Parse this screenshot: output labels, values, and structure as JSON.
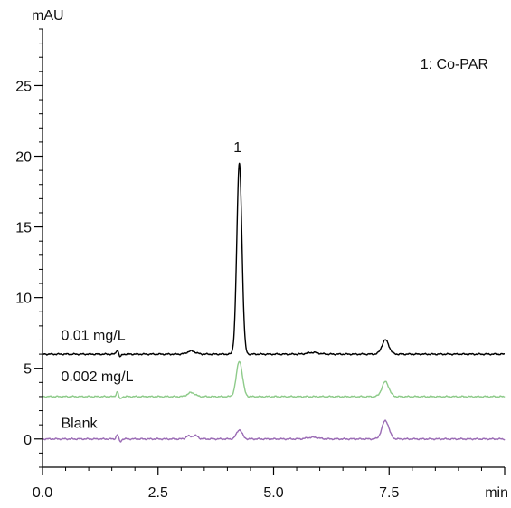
{
  "chart_data": {
    "type": "line",
    "y_unit_label": "mAU",
    "x_unit_label": "min",
    "xlim": [
      0,
      10
    ],
    "ylim": [
      -2,
      29
    ],
    "x_major_ticks": [
      0,
      2.5,
      5,
      7.5,
      10
    ],
    "x_tick_labels": [
      "0.0",
      "2.5",
      "5.0",
      "7.5",
      "min"
    ],
    "x_minor_step": 0.5,
    "y_major_ticks": [
      0,
      5,
      10,
      15,
      20,
      25
    ],
    "y_tick_labels": [
      "0",
      "5",
      "10",
      "15",
      "20",
      "25"
    ],
    "y_minor_step": 1,
    "grid": false,
    "legend_text": "1: Co-PAR",
    "legend_position": "top-right",
    "peak_label": "1",
    "peak_label_x": 4.22,
    "peak_label_y": 20.3,
    "series": [
      {
        "name": "0.01 mg/L",
        "color": "#000000",
        "baseline": 6.0,
        "label_x": 0.4,
        "label_y": 7.0,
        "peaks": [
          {
            "x": 1.62,
            "h": 0.3,
            "w": 0.025
          },
          {
            "x": 1.68,
            "h": -0.2,
            "w": 0.025
          },
          {
            "x": 3.22,
            "h": 0.22,
            "w": 0.09
          },
          {
            "x": 4.26,
            "h": 13.5,
            "w": 0.055
          },
          {
            "x": 5.85,
            "h": 0.12,
            "w": 0.12
          },
          {
            "x": 7.42,
            "h": 1.0,
            "w": 0.075
          }
        ]
      },
      {
        "name": "0.002 mg/L",
        "color": "#8ecb8a",
        "baseline": 3.0,
        "label_x": 0.4,
        "label_y": 4.1,
        "peaks": [
          {
            "x": 1.62,
            "h": 0.35,
            "w": 0.025
          },
          {
            "x": 1.68,
            "h": -0.2,
            "w": 0.025
          },
          {
            "x": 3.22,
            "h": 0.28,
            "w": 0.08
          },
          {
            "x": 4.26,
            "h": 2.5,
            "w": 0.065
          },
          {
            "x": 7.42,
            "h": 1.05,
            "w": 0.075
          }
        ]
      },
      {
        "name": "Blank",
        "color": "#9b6cb5",
        "baseline": 0.0,
        "label_x": 0.4,
        "label_y": 0.8,
        "peaks": [
          {
            "x": 1.62,
            "h": 0.3,
            "w": 0.025
          },
          {
            "x": 1.68,
            "h": -0.2,
            "w": 0.025
          },
          {
            "x": 3.15,
            "h": 0.2,
            "w": 0.05
          },
          {
            "x": 3.3,
            "h": 0.25,
            "w": 0.06
          },
          {
            "x": 4.26,
            "h": 0.65,
            "w": 0.06
          },
          {
            "x": 5.85,
            "h": 0.12,
            "w": 0.12
          },
          {
            "x": 7.42,
            "h": 1.3,
            "w": 0.075
          }
        ]
      }
    ]
  }
}
